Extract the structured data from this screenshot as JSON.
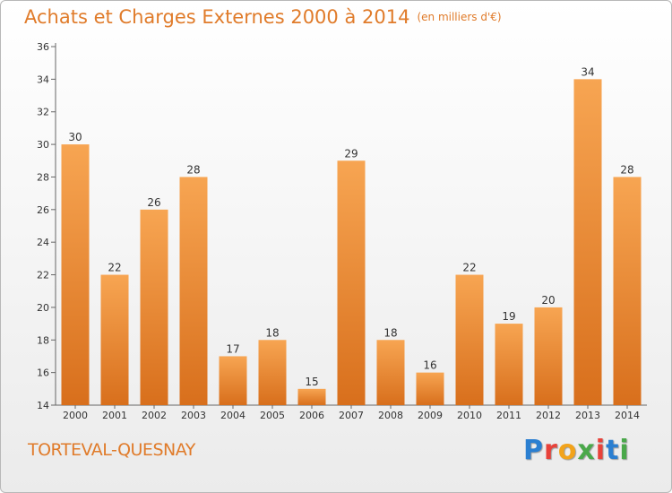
{
  "title": "Achats et Charges Externes 2000 à 2014",
  "unit": "(en milliers d'€)",
  "commune": "TORTEVAL-QUESNAY",
  "logo": {
    "letters": [
      {
        "char": "P",
        "color": "#2b7fd1"
      },
      {
        "char": "r",
        "color": "#e8423a"
      },
      {
        "char": "o",
        "color": "#f2a31b"
      },
      {
        "char": "x",
        "color": "#4aa84a"
      },
      {
        "char": "i",
        "color": "#e8423a"
      },
      {
        "char": "t",
        "color": "#2b7fd1"
      },
      {
        "char": "i",
        "color": "#4aa84a"
      }
    ]
  },
  "chart_data": {
    "type": "bar",
    "categories": [
      "2000",
      "2001",
      "2002",
      "2003",
      "2004",
      "2005",
      "2006",
      "2007",
      "2008",
      "2009",
      "2010",
      "2011",
      "2012",
      "2013",
      "2014"
    ],
    "values": [
      30,
      22,
      26,
      28,
      17,
      18,
      15,
      29,
      18,
      16,
      22,
      19,
      20,
      34,
      28
    ],
    "title": "Achats et Charges Externes 2000 à 2014",
    "xlabel": "",
    "ylabel": "",
    "ylim": [
      14,
      36
    ],
    "yticks": [
      14,
      16,
      18,
      20,
      22,
      24,
      26,
      28,
      30,
      32,
      34,
      36
    ],
    "grid": false,
    "bar_color_top": "#f7a552",
    "bar_color_bottom": "#d86f1c"
  }
}
